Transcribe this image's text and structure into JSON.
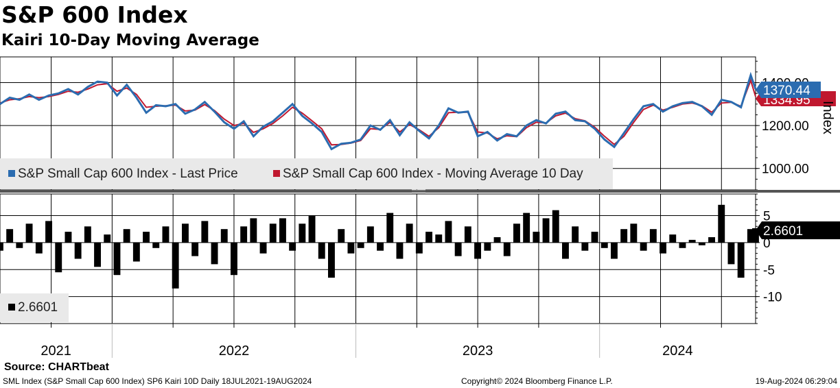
{
  "header": {
    "title": "S&P 600 Index",
    "subtitle": "Kairi 10-Day Moving Average"
  },
  "footer": {
    "source": "Source: CHARTbeat",
    "left": "SML Index (S&P Small Cap 600 Index) SP6 Kairi 10D  Daily 18JUL2021-19AUG2024",
    "center": "Copyright© 2024 Bloomberg Finance L.P.",
    "right": "19-Aug-2024 06:29:04"
  },
  "colors": {
    "price": "#2b6cb0",
    "ma": "#c0182f",
    "bars": "#000000",
    "grid": "#000000"
  },
  "chart_data": [
    {
      "type": "line",
      "title": "S&P 600 Index",
      "ylabel": "Index",
      "ylim": [
        900,
        1520
      ],
      "yticks": [
        1000,
        1200,
        1400
      ],
      "ytick_labels": [
        "1000.00",
        "1200.00",
        "1400.00"
      ],
      "x_range": [
        2021.54,
        2024.64
      ],
      "x_year_labels": [
        "2021",
        "2022",
        "2023",
        "2024"
      ],
      "legend": [
        "S&P Small Cap 600 Index - Last Price",
        "S&P Small Cap 600 Index - Moving Average 10 Day"
      ],
      "last_price_label": "1370.44",
      "ma_label": "1334.95",
      "series": [
        {
          "name": "S&P Small Cap 600 Index - Last Price",
          "x": [
            2021.54,
            2021.58,
            2021.62,
            2021.66,
            2021.7,
            2021.74,
            2021.78,
            2021.82,
            2021.86,
            2021.9,
            2021.94,
            2021.98,
            2022.02,
            2022.06,
            2022.1,
            2022.14,
            2022.18,
            2022.22,
            2022.26,
            2022.3,
            2022.34,
            2022.38,
            2022.42,
            2022.46,
            2022.5,
            2022.54,
            2022.58,
            2022.62,
            2022.66,
            2022.7,
            2022.74,
            2022.78,
            2022.82,
            2022.86,
            2022.9,
            2022.94,
            2022.98,
            2023.02,
            2023.06,
            2023.1,
            2023.14,
            2023.18,
            2023.22,
            2023.26,
            2023.3,
            2023.34,
            2023.38,
            2023.42,
            2023.46,
            2023.5,
            2023.54,
            2023.58,
            2023.62,
            2023.66,
            2023.7,
            2023.74,
            2023.78,
            2023.82,
            2023.86,
            2023.9,
            2023.94,
            2023.98,
            2024.02,
            2024.06,
            2024.1,
            2024.14,
            2024.18,
            2024.22,
            2024.26,
            2024.3,
            2024.34,
            2024.38,
            2024.42,
            2024.46,
            2024.5,
            2024.54,
            2024.58,
            2024.62,
            2024.64
          ],
          "values": [
            1300,
            1330,
            1320,
            1345,
            1320,
            1340,
            1350,
            1370,
            1345,
            1380,
            1405,
            1400,
            1340,
            1390,
            1330,
            1260,
            1295,
            1290,
            1300,
            1255,
            1275,
            1310,
            1265,
            1215,
            1185,
            1220,
            1150,
            1195,
            1220,
            1260,
            1300,
            1245,
            1210,
            1170,
            1090,
            1115,
            1120,
            1135,
            1200,
            1180,
            1225,
            1155,
            1215,
            1175,
            1140,
            1200,
            1280,
            1260,
            1265,
            1150,
            1170,
            1130,
            1160,
            1150,
            1200,
            1225,
            1210,
            1255,
            1265,
            1225,
            1220,
            1185,
            1135,
            1100,
            1165,
            1230,
            1290,
            1300,
            1265,
            1290,
            1305,
            1310,
            1290,
            1250,
            1320,
            1310,
            1285,
            1435,
            1370
          ]
        },
        {
          "name": "S&P Small Cap 600 Index - Moving Average 10 Day",
          "x": [
            2021.54,
            2021.58,
            2021.62,
            2021.66,
            2021.7,
            2021.74,
            2021.78,
            2021.82,
            2021.86,
            2021.9,
            2021.94,
            2021.98,
            2022.02,
            2022.06,
            2022.1,
            2022.14,
            2022.18,
            2022.22,
            2022.26,
            2022.3,
            2022.34,
            2022.38,
            2022.42,
            2022.46,
            2022.5,
            2022.54,
            2022.58,
            2022.62,
            2022.66,
            2022.7,
            2022.74,
            2022.78,
            2022.82,
            2022.86,
            2022.9,
            2022.94,
            2022.98,
            2023.02,
            2023.06,
            2023.1,
            2023.14,
            2023.18,
            2023.22,
            2023.26,
            2023.3,
            2023.34,
            2023.38,
            2023.42,
            2023.46,
            2023.5,
            2023.54,
            2023.58,
            2023.62,
            2023.66,
            2023.7,
            2023.74,
            2023.78,
            2023.82,
            2023.86,
            2023.9,
            2023.94,
            2023.98,
            2024.02,
            2024.06,
            2024.1,
            2024.14,
            2024.18,
            2024.22,
            2024.26,
            2024.3,
            2024.34,
            2024.38,
            2024.42,
            2024.46,
            2024.5,
            2024.54,
            2024.58,
            2024.62,
            2024.64
          ],
          "values": [
            1305,
            1320,
            1325,
            1335,
            1330,
            1335,
            1345,
            1360,
            1355,
            1370,
            1390,
            1395,
            1360,
            1375,
            1345,
            1285,
            1290,
            1292,
            1295,
            1268,
            1272,
            1298,
            1270,
            1230,
            1200,
            1210,
            1168,
            1185,
            1210,
            1245,
            1285,
            1258,
            1222,
            1185,
            1110,
            1112,
            1118,
            1130,
            1185,
            1182,
            1215,
            1170,
            1205,
            1180,
            1150,
            1190,
            1260,
            1262,
            1262,
            1170,
            1165,
            1138,
            1152,
            1148,
            1190,
            1215,
            1212,
            1245,
            1258,
            1232,
            1222,
            1192,
            1150,
            1112,
            1150,
            1215,
            1275,
            1295,
            1272,
            1285,
            1300,
            1305,
            1292,
            1262,
            1305,
            1308,
            1290,
            1410,
            1335
          ]
        }
      ]
    },
    {
      "type": "bar",
      "title": "Kairi 10D",
      "ylim": [
        -15,
        9
      ],
      "yticks": [
        5,
        0,
        -5,
        -10
      ],
      "ytick_labels": [
        "5",
        "0",
        "-5",
        "-10"
      ],
      "legend": [
        "2.6601"
      ],
      "last_value_label": "2.6601",
      "x_range": [
        2021.54,
        2024.64
      ],
      "series": [
        {
          "name": "Kairi 10D",
          "x": [
            2021.54,
            2021.58,
            2021.62,
            2021.66,
            2021.7,
            2021.74,
            2021.78,
            2021.82,
            2021.86,
            2021.9,
            2021.94,
            2021.98,
            2022.02,
            2022.06,
            2022.1,
            2022.14,
            2022.18,
            2022.22,
            2022.26,
            2022.3,
            2022.34,
            2022.38,
            2022.42,
            2022.46,
            2022.5,
            2022.54,
            2022.58,
            2022.62,
            2022.66,
            2022.7,
            2022.74,
            2022.78,
            2022.82,
            2022.86,
            2022.9,
            2022.94,
            2022.98,
            2023.02,
            2023.06,
            2023.1,
            2023.14,
            2023.18,
            2023.22,
            2023.26,
            2023.3,
            2023.34,
            2023.38,
            2023.42,
            2023.46,
            2023.5,
            2023.54,
            2023.58,
            2023.62,
            2023.66,
            2023.7,
            2023.74,
            2023.78,
            2023.82,
            2023.86,
            2023.9,
            2023.94,
            2023.98,
            2024.02,
            2024.06,
            2024.1,
            2024.14,
            2024.18,
            2024.22,
            2024.26,
            2024.3,
            2024.34,
            2024.38,
            2024.42,
            2024.46,
            2024.5,
            2024.54,
            2024.58,
            2024.62,
            2024.64
          ],
          "values": [
            -1.5,
            2.5,
            -1.0,
            3.5,
            -2.0,
            4.0,
            -5.5,
            2.0,
            -3.0,
            3.0,
            -4.5,
            1.5,
            -6.0,
            2.5,
            -3.5,
            2.0,
            -1.0,
            3.0,
            -8.5,
            3.5,
            -2.5,
            4.0,
            -4.0,
            2.5,
            -6.0,
            3.0,
            4.5,
            -2.0,
            3.5,
            4.5,
            -1.5,
            3.5,
            5.0,
            -3.0,
            -6.5,
            2.5,
            -2.0,
            -1.0,
            3.0,
            -1.5,
            5.5,
            -3.0,
            3.5,
            -2.0,
            2.0,
            1.5,
            4.0,
            -2.5,
            3.0,
            -3.0,
            -1.5,
            1.0,
            -2.5,
            3.5,
            5.5,
            2.0,
            4.5,
            6.0,
            -3.0,
            3.0,
            -1.5,
            2.0,
            -1.0,
            -3.0,
            2.5,
            3.5,
            -1.5,
            2.5,
            -2.0,
            1.5,
            -1.0,
            0.5,
            -0.5,
            1.0,
            7.0,
            -4.0,
            -6.5,
            2.5,
            2.6601
          ]
        }
      ]
    }
  ]
}
